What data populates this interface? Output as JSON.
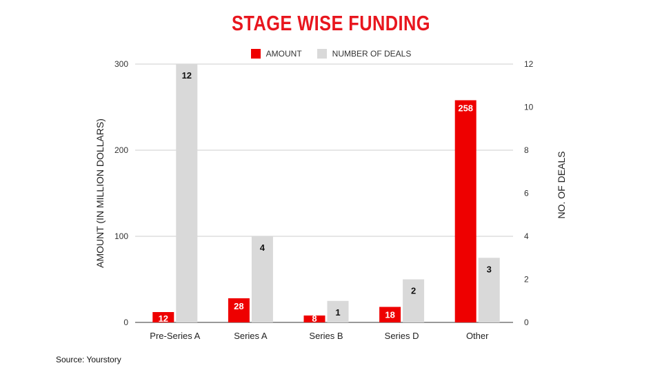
{
  "chart_data": {
    "type": "bar",
    "title": "STAGE WISE FUNDING",
    "categories": [
      "Pre-Series A",
      "Series A",
      "Series B",
      "Series D",
      "Other"
    ],
    "series": [
      {
        "name": "AMOUNT",
        "axis": "left",
        "color": "#ee0000",
        "values": [
          12,
          28,
          8,
          18,
          258
        ]
      },
      {
        "name": "NUMBER OF DEALS",
        "axis": "right",
        "color": "#d9d9d9",
        "values": [
          12,
          4,
          1,
          2,
          3
        ]
      }
    ],
    "ylabel": "AMOUNT (IN MILLION DOLLARS)",
    "y2label": "NO. OF DEALS",
    "ylim": [
      0,
      300
    ],
    "y2lim": [
      0,
      12
    ],
    "yticks": [
      "0",
      "100",
      "200",
      "300"
    ],
    "y2ticks": [
      "0",
      "2",
      "4",
      "6",
      "8",
      "10",
      "12"
    ],
    "legend_position": "top-center",
    "grid": true
  },
  "source": "Source: Yourstory"
}
